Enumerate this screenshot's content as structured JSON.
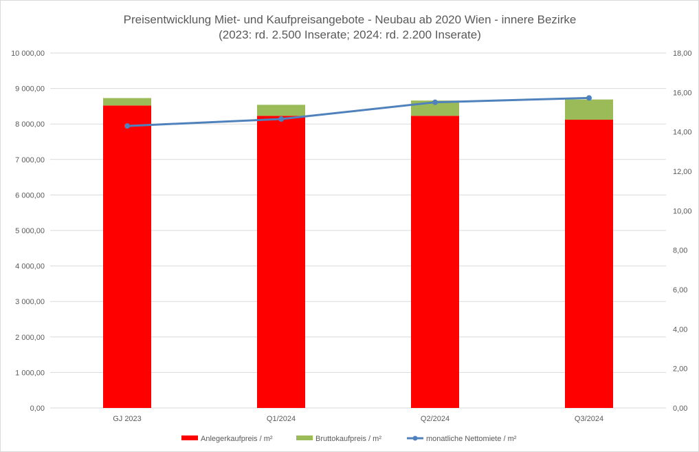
{
  "chart_data": {
    "type": "bar",
    "title": "Preisentwicklung Miet- und Kaufpreisangebote - Neubau ab 2020 Wien - innere Bezirke",
    "subtitle": "(2023: rd. 2.500 Inserate;  2024: rd. 2.200 Inserate)",
    "categories": [
      "GJ 2023",
      "Q1/2024",
      "Q2/2024",
      "Q3/2024"
    ],
    "stacked": true,
    "series": [
      {
        "name": "Anlegerkaufpreis / m²",
        "type": "bar",
        "axis": "left",
        "color": "#ff0000",
        "values": [
          8520,
          8230,
          8230,
          8120
        ]
      },
      {
        "name": "Bruttokaufpreis / m²",
        "type": "bar",
        "axis": "left",
        "color": "#9bbb59",
        "values": [
          210,
          310,
          430,
          570
        ]
      },
      {
        "name": "monatliche Nettomiete / m²",
        "type": "line",
        "axis": "right",
        "color": "#4f81bd",
        "values": [
          14.3,
          14.65,
          15.5,
          15.72
        ]
      }
    ],
    "y_left": {
      "min": 0,
      "max": 10000,
      "step": 1000,
      "tick_labels": [
        "0,00",
        "1 000,00",
        "2 000,00",
        "3 000,00",
        "4 000,00",
        "5 000,00",
        "6 000,00",
        "7 000,00",
        "8 000,00",
        "9 000,00",
        "10 000,00"
      ]
    },
    "y_right": {
      "min": 0,
      "max": 18,
      "step": 2,
      "tick_labels": [
        "0,00",
        "2,00",
        "4,00",
        "6,00",
        "8,00",
        "10,00",
        "12,00",
        "14,00",
        "16,00",
        "18,00"
      ]
    },
    "grid": true,
    "legend_position": "bottom"
  }
}
